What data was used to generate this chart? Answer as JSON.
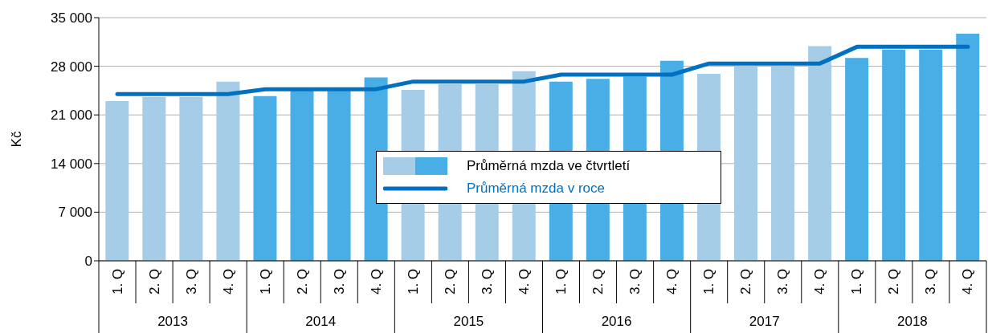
{
  "chart_data": {
    "type": "bar",
    "ylabel": "Kč",
    "categories": [
      "1. Q",
      "2. Q",
      "3. Q",
      "4. Q",
      "1. Q",
      "2. Q",
      "3. Q",
      "4. Q",
      "1. Q",
      "2. Q",
      "3. Q",
      "4. Q",
      "1. Q",
      "2. Q",
      "3. Q",
      "4. Q",
      "1. Q",
      "2. Q",
      "3. Q",
      "4. Q",
      "1. Q",
      "2. Q",
      "3. Q",
      "4. Q"
    ],
    "annotations": [
      "2013",
      "2014",
      "2015",
      "2016",
      "2017",
      "2018"
    ],
    "series": [
      {
        "name": "Průměrná mzda ve čtvrtletí",
        "colors": [
          "#a6cde8",
          "#a6cde8",
          "#a6cde8",
          "#a6cde8",
          "#4aaee6",
          "#4aaee6",
          "#4aaee6",
          "#4aaee6",
          "#a6cde8",
          "#a6cde8",
          "#a6cde8",
          "#a6cde8",
          "#4aaee6",
          "#4aaee6",
          "#4aaee6",
          "#4aaee6",
          "#a6cde8",
          "#a6cde8",
          "#a6cde8",
          "#a6cde8",
          "#4aaee6",
          "#4aaee6",
          "#4aaee6",
          "#4aaee6"
        ],
        "values": [
          23000,
          23600,
          23600,
          25800,
          23700,
          24600,
          24600,
          26400,
          24600,
          25400,
          25400,
          27300,
          25800,
          26200,
          26500,
          28800,
          26900,
          28000,
          28000,
          30900,
          29200,
          30400,
          30400,
          32700
        ]
      },
      {
        "name": "Průměrná mzda v roce",
        "type": "line",
        "color": "#0070c0",
        "values": [
          24000,
          24000,
          24000,
          24000,
          24700,
          24700,
          24700,
          24700,
          25800,
          25800,
          25800,
          25800,
          26800,
          26800,
          26800,
          26800,
          28400,
          28400,
          28400,
          28400,
          30800,
          30800,
          30800,
          30800
        ]
      }
    ],
    "ylim": [
      0,
      35000
    ],
    "yticks": [
      0,
      {
        "value": 7000,
        "label": "7 000"
      },
      {
        "value": 14000,
        "label": "14 000"
      },
      {
        "value": 21000,
        "label": "21 000"
      },
      {
        "value": 28000,
        "label": "28 000"
      },
      {
        "value": 35000,
        "label": "35 000"
      }
    ],
    "grid": "y",
    "legend": "center",
    "marker": "none"
  }
}
